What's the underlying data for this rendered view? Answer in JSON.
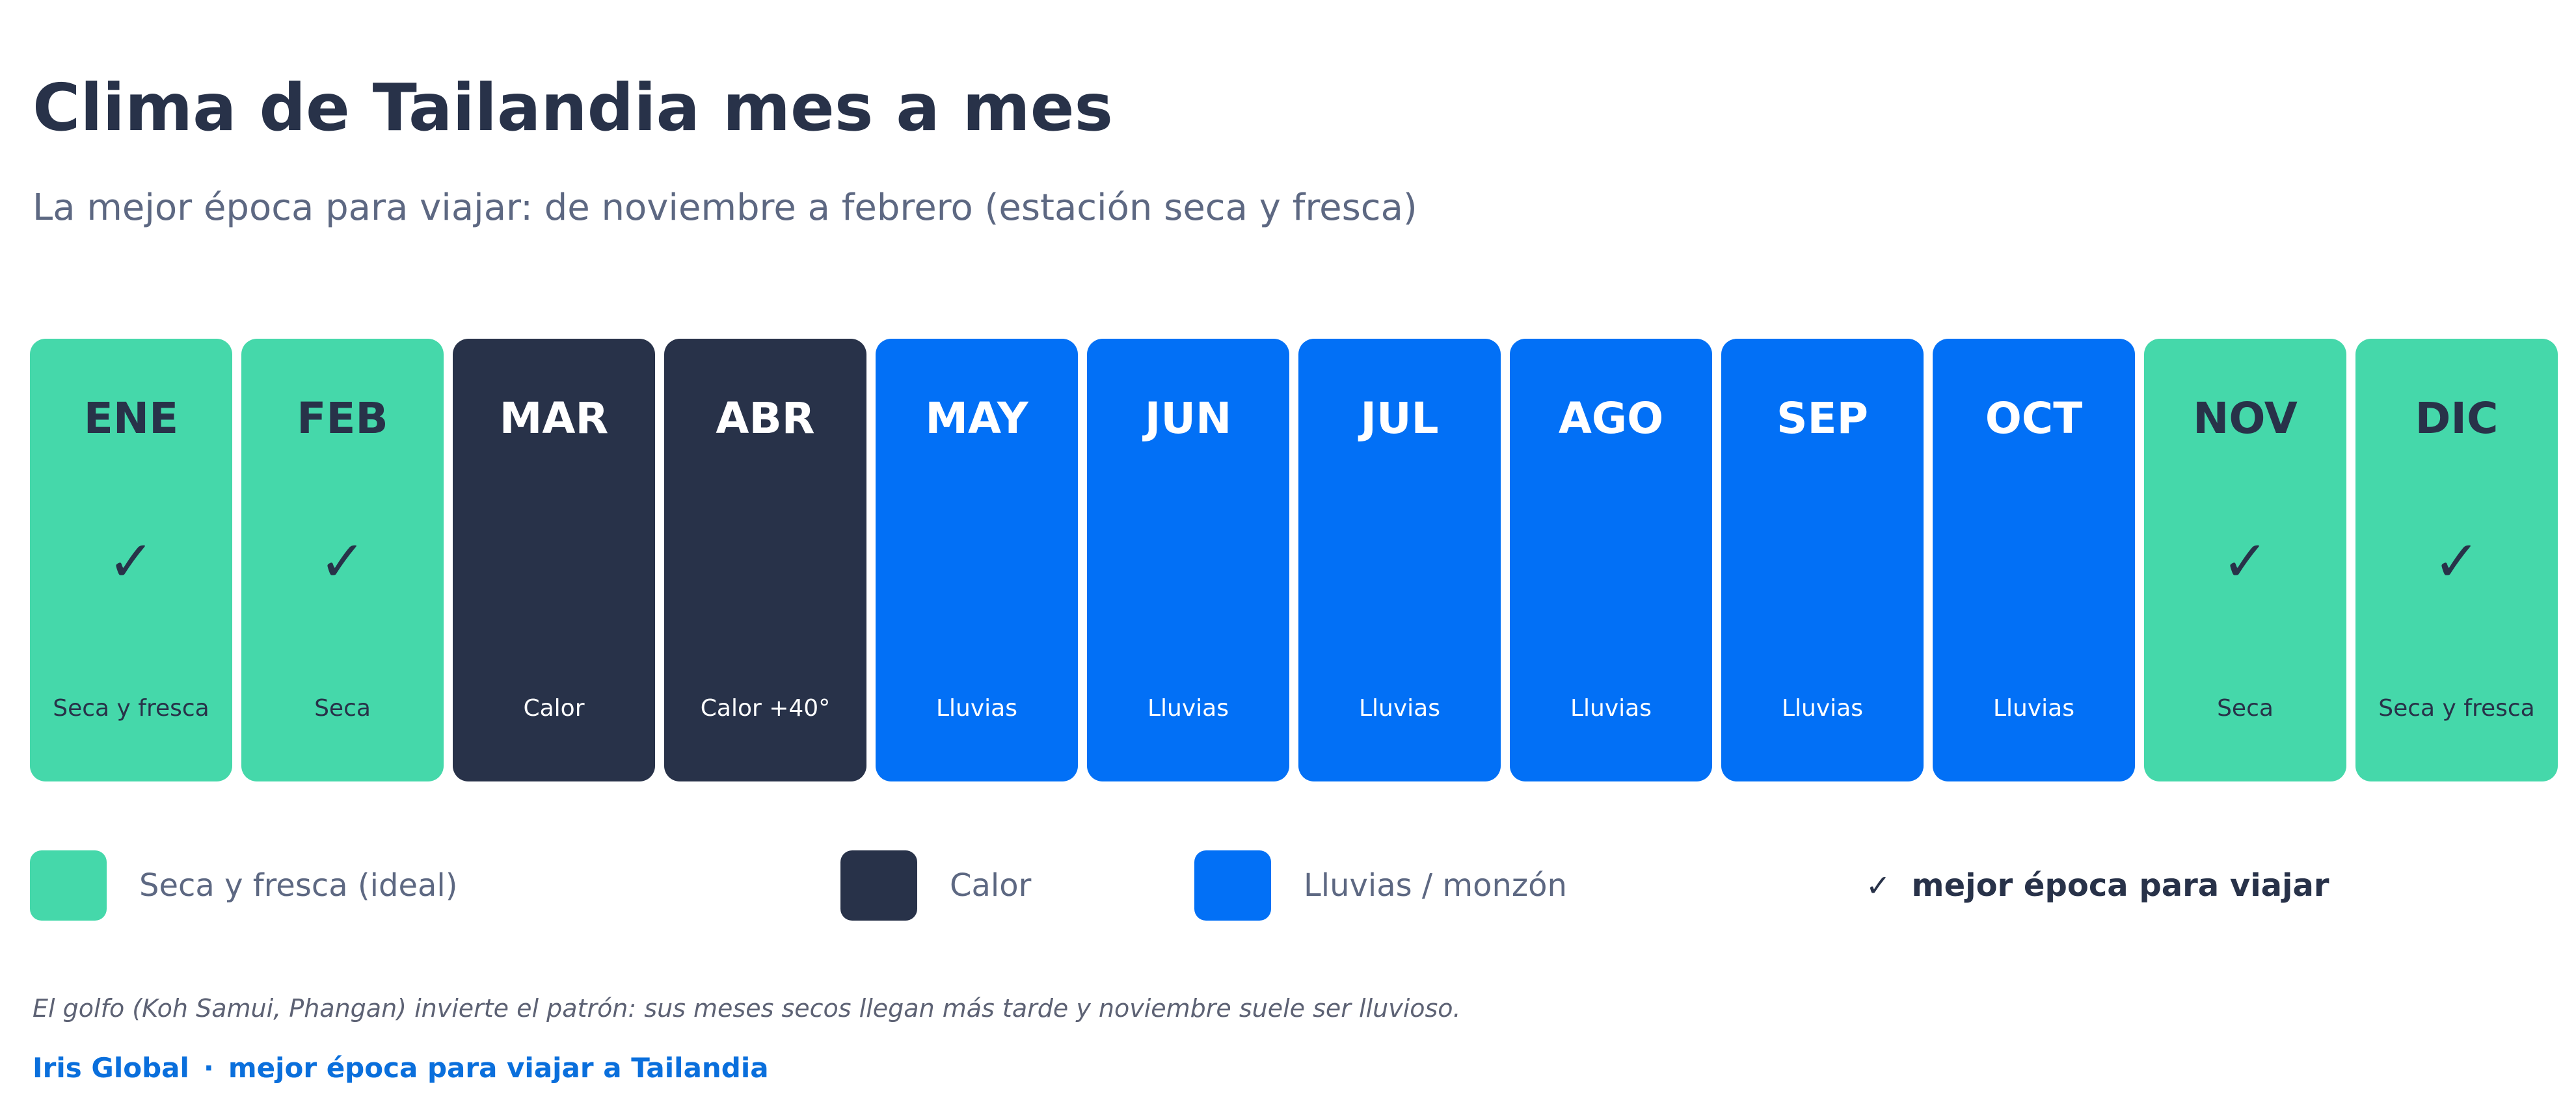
{
  "header": {
    "title": "Clima de Tailandia mes a mes",
    "subtitle": "La mejor época para viajar: de noviembre a febrero (estación seca y fresca)"
  },
  "colors": {
    "dry": "#45d8aa",
    "hot": "#283249",
    "rain": "#0270f6"
  },
  "months": [
    {
      "name": "ENE",
      "label": "Seca y fresca",
      "type": "dry",
      "best": true
    },
    {
      "name": "FEB",
      "label": "Seca",
      "type": "dry",
      "best": true
    },
    {
      "name": "MAR",
      "label": "Calor",
      "type": "hot",
      "best": false
    },
    {
      "name": "ABR",
      "label": "Calor +40°",
      "type": "hot",
      "best": false
    },
    {
      "name": "MAY",
      "label": "Lluvias",
      "type": "rain",
      "best": false
    },
    {
      "name": "JUN",
      "label": "Lluvias",
      "type": "rain",
      "best": false
    },
    {
      "name": "JUL",
      "label": "Lluvias",
      "type": "rain",
      "best": false
    },
    {
      "name": "AGO",
      "label": "Lluvias",
      "type": "rain",
      "best": false
    },
    {
      "name": "SEP",
      "label": "Lluvias",
      "type": "rain",
      "best": false
    },
    {
      "name": "OCT",
      "label": "Lluvias",
      "type": "rain",
      "best": false
    },
    {
      "name": "NOV",
      "label": "Seca",
      "type": "dry",
      "best": true
    },
    {
      "name": "DIC",
      "label": "Seca y fresca",
      "type": "dry",
      "best": true
    }
  ],
  "check_mark": "✓",
  "legend": {
    "dry": "Seca y fresca (ideal)",
    "hot": "Calor",
    "rain": "Lluvias / monzón",
    "best": "mejor época para viajar"
  },
  "note": "El golfo (Koh Samui, Phangan) invierte el patrón: sus meses secos llegan más tarde y noviembre suele ser lluvioso.",
  "footer": {
    "brand": "Iris Global",
    "separator": "·",
    "link": "mejor época para viajar a Tailandia"
  }
}
